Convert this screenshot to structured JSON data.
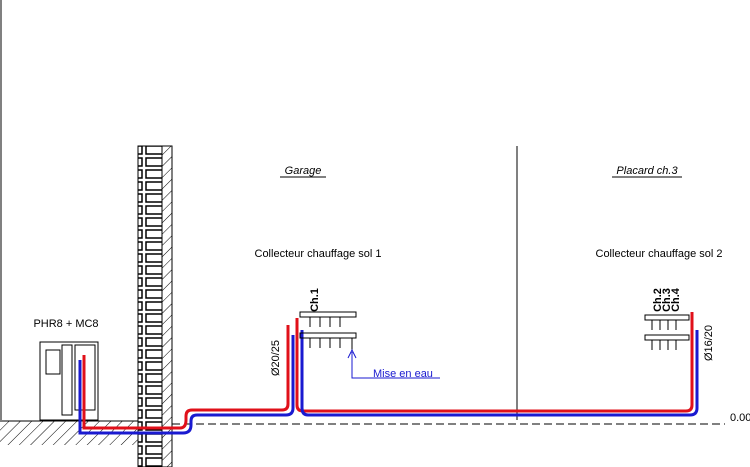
{
  "rooms": [
    "Garage",
    "Placard ch.3"
  ],
  "collectors": [
    "Collecteur chauffage sol 1",
    "Collecteur chauffage sol 2"
  ],
  "boiler": "PHR8 + MC8",
  "pipe_sizes": [
    "Ø20/25",
    "Ø16/20"
  ],
  "fill_point": "Mise en eau",
  "circuits": [
    "Ch.1",
    "Ch.2",
    "Ch.3",
    "Ch.4"
  ],
  "level": "0.00"
}
